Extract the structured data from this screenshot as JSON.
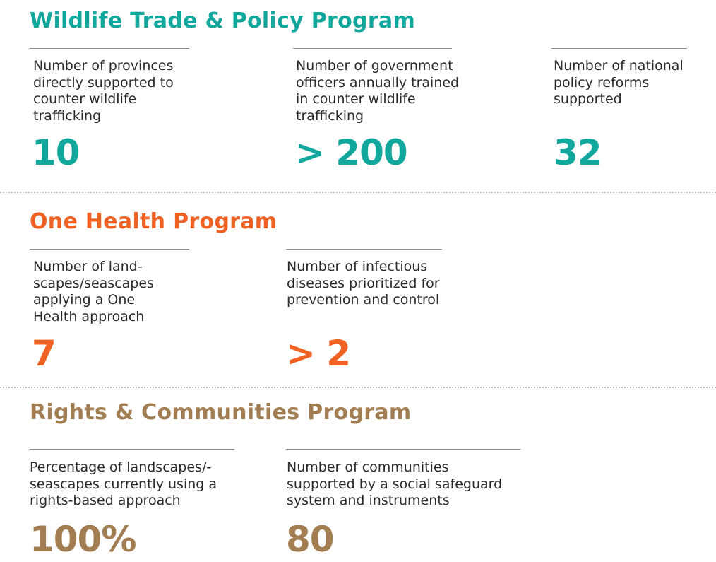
{
  "colors": {
    "wildlife": "#12a79d",
    "one_health": "#ef6224",
    "rights": "#a17d51"
  },
  "sections": [
    {
      "heading": "Wildlife Trade & Policy Program",
      "stats": [
        {
          "label": "Number of provinces directly supported to counter wildlife trafficking",
          "value": "10"
        },
        {
          "label": "Number of government officers annually trained in counter wildlife trafficking",
          "value": "> 200"
        },
        {
          "label": "Number of national policy reforms supported",
          "value": "32"
        }
      ]
    },
    {
      "heading": "One Health Program",
      "stats": [
        {
          "label": "Number of land-scapes/seascapes applying a One Health approach",
          "value": "7"
        },
        {
          "label": "Number of infectious diseases prioritized for prevention and control",
          "value": "> 2"
        }
      ]
    },
    {
      "heading": "Rights & Communities Program",
      "stats": [
        {
          "label": "Percentage of landscapes/-seascapes currently using a rights-based approach",
          "value": "100%"
        },
        {
          "label": "Number of communities supported by a social safeguard system and instruments",
          "value": "80"
        }
      ]
    }
  ]
}
